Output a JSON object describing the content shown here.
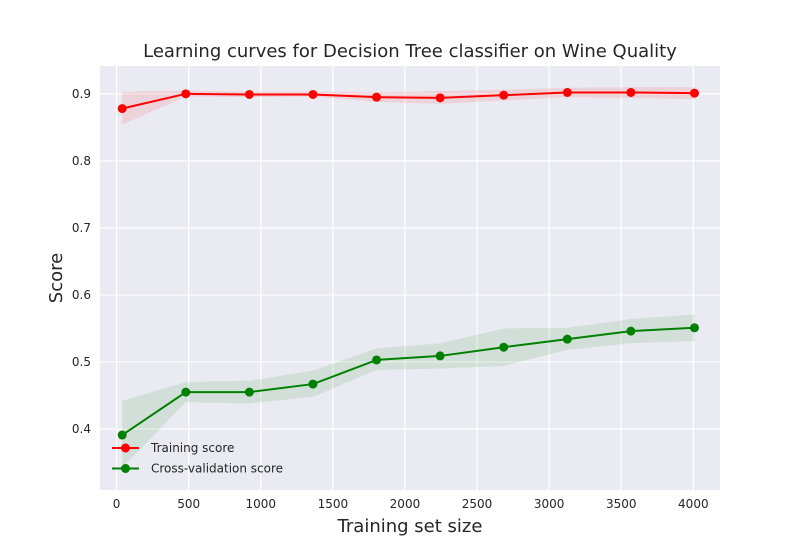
{
  "chart_data": {
    "type": "line",
    "title": "Learning curves for Decision Tree classifier on Wine Quality",
    "xlabel": "Training set size",
    "ylabel": "Score",
    "xlim": [
      -115,
      4185
    ],
    "ylim": [
      0.309,
      0.9415
    ],
    "x_ticks": [
      0,
      500,
      1000,
      1500,
      2000,
      2500,
      3000,
      3500,
      4000
    ],
    "y_ticks": [
      0.4,
      0.5,
      0.6,
      0.7,
      0.8,
      0.9
    ],
    "x_tick_labels": [
      "0",
      "500",
      "1000",
      "1500",
      "2000",
      "2500",
      "3000",
      "3500",
      "4000"
    ],
    "y_tick_labels": [
      "0.4",
      "0.5",
      "0.6",
      "0.7",
      "0.8",
      "0.9"
    ],
    "grid": true,
    "legend_position": "lower-left",
    "x": [
      39,
      480,
      921,
      1362,
      1803,
      2244,
      2685,
      3126,
      3567,
      4008
    ],
    "series": [
      {
        "name": "Training score",
        "color": "#ff0000",
        "values": [
          0.878,
          0.9,
          0.899,
          0.899,
          0.895,
          0.894,
          0.898,
          0.902,
          0.902,
          0.901
        ],
        "band_lower": [
          0.854,
          0.896,
          0.895,
          0.896,
          0.888,
          0.885,
          0.89,
          0.895,
          0.894,
          0.892
        ],
        "band_upper": [
          0.903,
          0.905,
          0.903,
          0.903,
          0.902,
          0.904,
          0.906,
          0.909,
          0.91,
          0.91
        ]
      },
      {
        "name": "Cross-validation score",
        "color": "#008000",
        "values": [
          0.391,
          0.455,
          0.455,
          0.467,
          0.503,
          0.509,
          0.522,
          0.534,
          0.546,
          0.551
        ],
        "band_lower": [
          0.342,
          0.44,
          0.438,
          0.448,
          0.488,
          0.49,
          0.494,
          0.518,
          0.528,
          0.531
        ],
        "band_upper": [
          0.442,
          0.47,
          0.472,
          0.487,
          0.52,
          0.528,
          0.55,
          0.551,
          0.564,
          0.571
        ]
      }
    ]
  }
}
